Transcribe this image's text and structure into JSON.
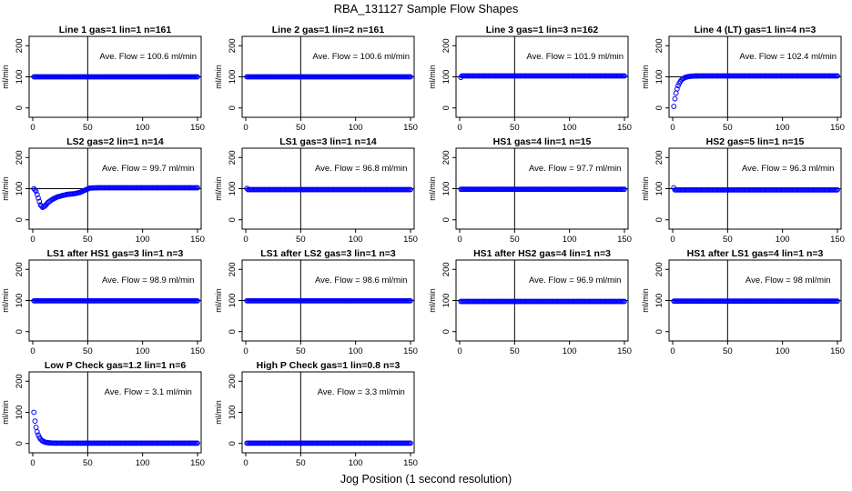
{
  "figure": {
    "title": "RBA_131127  Sample Flow Shapes",
    "xlabel": "Jog Position (1 second resolution)"
  },
  "colors": {
    "points": "#0000ff",
    "lines": "#000000"
  },
  "chart_data": [
    {
      "type": "scatter",
      "title": "Line 1 gas=1 lin=1 n=161",
      "ylabel": "ml/min",
      "annotation": "Ave. Flow = 100.6  ml/min",
      "xlim": [
        0,
        150
      ],
      "ylim": [
        -30,
        230
      ],
      "xticks": [
        0,
        50,
        100,
        150
      ],
      "yticks": [
        0,
        100,
        200
      ],
      "hline": 100,
      "vline": 50,
      "x": [
        1,
        150
      ],
      "flow": {
        "shape": "flat",
        "level": 100
      }
    },
    {
      "type": "scatter",
      "title": "Line 2 gas=1 lin=2 n=161",
      "ylabel": "ml/min",
      "annotation": "Ave. Flow = 100.6  ml/min",
      "xlim": [
        0,
        150
      ],
      "ylim": [
        -30,
        230
      ],
      "xticks": [
        0,
        50,
        100,
        150
      ],
      "yticks": [
        0,
        100,
        200
      ],
      "hline": 100,
      "vline": 50,
      "x": [
        1,
        150
      ],
      "flow": {
        "shape": "flat",
        "level": 100
      }
    },
    {
      "type": "scatter",
      "title": "Line 3 gas=1 lin=3 n=162",
      "ylabel": "ml/min",
      "annotation": "Ave. Flow = 101.9  ml/min",
      "xlim": [
        0,
        150
      ],
      "ylim": [
        -30,
        230
      ],
      "xticks": [
        0,
        50,
        100,
        150
      ],
      "yticks": [
        0,
        100,
        200
      ],
      "hline": 100,
      "vline": 50,
      "x": [
        1,
        150
      ],
      "flow": {
        "shape": "flat",
        "level": 103,
        "start": 98
      }
    },
    {
      "type": "scatter",
      "title": "Line 4 (LT) gas=1 lin=4 n=3",
      "ylabel": "ml/min",
      "annotation": "Ave. Flow = 102.4  ml/min",
      "xlim": [
        0,
        150
      ],
      "ylim": [
        -30,
        230
      ],
      "xticks": [
        0,
        50,
        100,
        150
      ],
      "yticks": [
        0,
        100,
        200
      ],
      "hline": 100,
      "vline": 50,
      "x": [
        1,
        150
      ],
      "flow": {
        "shape": "rise",
        "level": 103,
        "start": 5,
        "tau": 3.5
      }
    },
    {
      "type": "scatter",
      "title": "LS2 gas=2 lin=1 n=14",
      "ylabel": "ml/min",
      "annotation": "Ave. Flow = 99.7  ml/min",
      "xlim": [
        0,
        150
      ],
      "ylim": [
        -30,
        230
      ],
      "xticks": [
        0,
        50,
        100,
        150
      ],
      "yticks": [
        0,
        100,
        200
      ],
      "hline": 100,
      "vline": 50,
      "x": [
        1,
        150
      ],
      "flow": {
        "shape": "dip",
        "level": 103,
        "key": [
          [
            1,
            100
          ],
          [
            3,
            92
          ],
          [
            5,
            70
          ],
          [
            7,
            48
          ],
          [
            9,
            40
          ],
          [
            11,
            44
          ],
          [
            14,
            56
          ],
          [
            18,
            66
          ],
          [
            22,
            73
          ],
          [
            27,
            78
          ],
          [
            32,
            82
          ],
          [
            38,
            84
          ],
          [
            43,
            88
          ],
          [
            48,
            96
          ],
          [
            52,
            102
          ],
          [
            60,
            103
          ]
        ]
      }
    },
    {
      "type": "scatter",
      "title": "LS1 gas=3 lin=1 n=14",
      "ylabel": "ml/min",
      "annotation": "Ave. Flow = 96.8  ml/min",
      "xlim": [
        0,
        150
      ],
      "ylim": [
        -30,
        230
      ],
      "xticks": [
        0,
        50,
        100,
        150
      ],
      "yticks": [
        0,
        100,
        200
      ],
      "hline": 100,
      "vline": 50,
      "x": [
        1,
        150
      ],
      "flow": {
        "shape": "flat",
        "level": 97,
        "start": 101
      }
    },
    {
      "type": "scatter",
      "title": "HS1 gas=4 lin=1 n=15",
      "ylabel": "ml/min",
      "annotation": "Ave. Flow = 97.7  ml/min",
      "xlim": [
        0,
        150
      ],
      "ylim": [
        -30,
        230
      ],
      "xticks": [
        0,
        50,
        100,
        150
      ],
      "yticks": [
        0,
        100,
        200
      ],
      "hline": 100,
      "vline": 50,
      "x": [
        1,
        150
      ],
      "flow": {
        "shape": "flat",
        "level": 98
      }
    },
    {
      "type": "scatter",
      "title": "HS2 gas=5 lin=1 n=15",
      "ylabel": "ml/min",
      "annotation": "Ave. Flow = 96.3  ml/min",
      "xlim": [
        0,
        150
      ],
      "ylim": [
        -30,
        230
      ],
      "xticks": [
        0,
        50,
        100,
        150
      ],
      "yticks": [
        0,
        100,
        200
      ],
      "hline": 100,
      "vline": 50,
      "x": [
        1,
        150
      ],
      "flow": {
        "shape": "flat",
        "level": 96,
        "start": 103
      }
    },
    {
      "type": "scatter",
      "title": "LS1 after HS1 gas=3 lin=1 n=3",
      "ylabel": "ml/min",
      "annotation": "Ave. Flow = 98.9  ml/min",
      "xlim": [
        0,
        150
      ],
      "ylim": [
        -30,
        230
      ],
      "xticks": [
        0,
        50,
        100,
        150
      ],
      "yticks": [
        0,
        100,
        200
      ],
      "hline": 100,
      "vline": 50,
      "x": [
        1,
        150
      ],
      "flow": {
        "shape": "flat",
        "level": 99
      }
    },
    {
      "type": "scatter",
      "title": "LS1 after LS2 gas=3 lin=1 n=3",
      "ylabel": "ml/min",
      "annotation": "Ave. Flow = 98.6  ml/min",
      "xlim": [
        0,
        150
      ],
      "ylim": [
        -30,
        230
      ],
      "xticks": [
        0,
        50,
        100,
        150
      ],
      "yticks": [
        0,
        100,
        200
      ],
      "hline": 100,
      "vline": 50,
      "x": [
        1,
        150
      ],
      "flow": {
        "shape": "flat",
        "level": 99
      }
    },
    {
      "type": "scatter",
      "title": "HS1 after HS2 gas=4 lin=1 n=3",
      "ylabel": "ml/min",
      "annotation": "Ave. Flow = 96.9  ml/min",
      "xlim": [
        0,
        150
      ],
      "ylim": [
        -30,
        230
      ],
      "xticks": [
        0,
        50,
        100,
        150
      ],
      "yticks": [
        0,
        100,
        200
      ],
      "hline": 100,
      "vline": 50,
      "x": [
        1,
        150
      ],
      "flow": {
        "shape": "flat",
        "level": 97
      }
    },
    {
      "type": "scatter",
      "title": "HS1 after LS1 gas=4 lin=1 n=3",
      "ylabel": "ml/min",
      "annotation": "Ave. Flow = 98  ml/min",
      "xlim": [
        0,
        150
      ],
      "ylim": [
        -30,
        230
      ],
      "xticks": [
        0,
        50,
        100,
        150
      ],
      "yticks": [
        0,
        100,
        200
      ],
      "hline": 100,
      "vline": 50,
      "x": [
        1,
        150
      ],
      "flow": {
        "shape": "flat",
        "level": 98
      }
    },
    {
      "type": "scatter",
      "title": "Low P Check gas=1.2 lin=1 n=6",
      "ylabel": "ml/min",
      "annotation": "Ave. Flow = 3.1  ml/min",
      "xlim": [
        0,
        150
      ],
      "ylim": [
        -30,
        230
      ],
      "xticks": [
        0,
        50,
        100,
        150
      ],
      "yticks": [
        0,
        100,
        200
      ],
      "hline": null,
      "vline": 50,
      "x": [
        1,
        150
      ],
      "flow": {
        "shape": "decay",
        "level": 1,
        "start": 100,
        "tau": 3
      }
    },
    {
      "type": "scatter",
      "title": "High P Check gas=1 lin=0.8 n=3",
      "ylabel": "ml/min",
      "annotation": "Ave. Flow = 3.3  ml/min",
      "xlim": [
        0,
        150
      ],
      "ylim": [
        -30,
        230
      ],
      "xticks": [
        0,
        50,
        100,
        150
      ],
      "yticks": [
        0,
        100,
        200
      ],
      "hline": null,
      "vline": 50,
      "x": [
        1,
        150
      ],
      "flow": {
        "shape": "flat",
        "level": 1
      }
    }
  ]
}
